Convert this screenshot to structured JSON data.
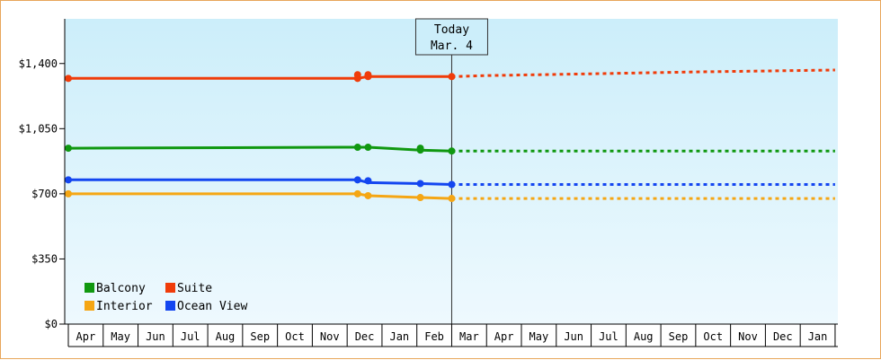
{
  "chart_data": {
    "type": "line",
    "title": "",
    "xlabel": "",
    "ylabel": "",
    "y_ticks": [
      "$0",
      "$350",
      "$700",
      "$1,050",
      "$1,400"
    ],
    "y_tick_values": [
      0,
      350,
      700,
      1050,
      1400
    ],
    "ylim": [
      0,
      1640
    ],
    "x_categories": [
      "Apr",
      "May",
      "Jun",
      "Jul",
      "Aug",
      "Sep",
      "Oct",
      "Nov",
      "Dec",
      "Jan",
      "Feb",
      "Mar",
      "Apr",
      "May",
      "Jun",
      "Jul",
      "Aug",
      "Sep",
      "Oct",
      "Nov",
      "Dec",
      "Jan"
    ],
    "grid": false,
    "legend_placement": "bottom-left",
    "today_marker": {
      "line1": "Today",
      "line2": "Mar. 4",
      "x": 11.0
    },
    "series": [
      {
        "name": "Balcony",
        "color": "#109810",
        "points": [
          [
            0,
            945
          ],
          [
            8.3,
            950
          ],
          [
            8.6,
            950
          ],
          [
            10.1,
            935
          ],
          [
            11.0,
            930
          ]
        ],
        "marked": [
          [
            0,
            945
          ],
          [
            8.3,
            950
          ],
          [
            8.6,
            950
          ],
          [
            10.1,
            935
          ],
          [
            10.1,
            945
          ],
          [
            11.0,
            930
          ]
        ],
        "forecast": [
          [
            11.0,
            930
          ],
          [
            22,
            930
          ]
        ]
      },
      {
        "name": "Suite",
        "color": "#f03c0a",
        "points": [
          [
            0,
            1320
          ],
          [
            8.3,
            1320
          ],
          [
            8.6,
            1330
          ],
          [
            11.0,
            1330
          ]
        ],
        "marked": [
          [
            0,
            1320
          ],
          [
            8.3,
            1320
          ],
          [
            8.3,
            1340
          ],
          [
            8.6,
            1330
          ],
          [
            8.6,
            1340
          ],
          [
            11.0,
            1330
          ]
        ],
        "forecast": [
          [
            11.0,
            1330
          ],
          [
            12,
            1335
          ],
          [
            13.5,
            1340
          ],
          [
            15,
            1345
          ],
          [
            18,
            1355
          ],
          [
            22,
            1365
          ]
        ]
      },
      {
        "name": "Interior",
        "color": "#f5a614",
        "points": [
          [
            0,
            700
          ],
          [
            8.3,
            700
          ],
          [
            8.6,
            690
          ],
          [
            10.1,
            680
          ],
          [
            11.0,
            675
          ]
        ],
        "marked": [
          [
            0,
            700
          ],
          [
            8.3,
            700
          ],
          [
            8.6,
            690
          ],
          [
            10.1,
            680
          ],
          [
            11.0,
            675
          ]
        ],
        "forecast": [
          [
            11.0,
            675
          ],
          [
            22,
            675
          ]
        ]
      },
      {
        "name": "Ocean View",
        "color": "#1446f0",
        "points": [
          [
            0,
            775
          ],
          [
            8.3,
            775
          ],
          [
            8.6,
            760
          ],
          [
            10.1,
            755
          ],
          [
            11.0,
            750
          ]
        ],
        "marked": [
          [
            0,
            775
          ],
          [
            8.3,
            775
          ],
          [
            8.6,
            770
          ],
          [
            10.1,
            755
          ],
          [
            11.0,
            750
          ]
        ],
        "forecast": [
          [
            11.0,
            750
          ],
          [
            22,
            750
          ]
        ]
      }
    ]
  }
}
